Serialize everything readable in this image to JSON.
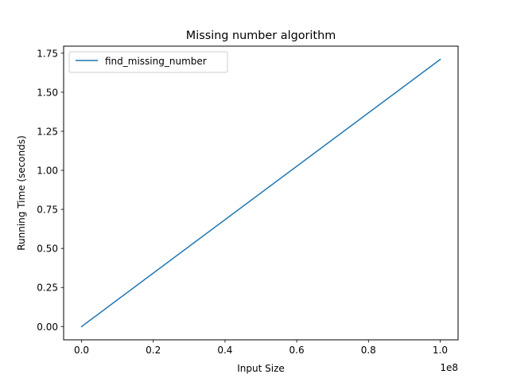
{
  "chart_data": {
    "type": "line",
    "title": "Missing number algorithm",
    "xlabel": "Input Size",
    "ylabel": "Running Time (seconds)",
    "x_offset_label": "1e8",
    "xlim": [
      -0.05,
      1.05
    ],
    "ylim": [
      -0.085,
      1.795
    ],
    "x_scale_note": "x values shown in units of 1e8",
    "xticks": [
      0.0,
      0.2,
      0.4,
      0.6,
      0.8,
      1.0
    ],
    "xtick_labels": [
      "0.0",
      "0.2",
      "0.4",
      "0.6",
      "0.8",
      "1.0"
    ],
    "yticks": [
      0.0,
      0.25,
      0.5,
      0.75,
      1.0,
      1.25,
      1.5,
      1.75
    ],
    "ytick_labels": [
      "0.00",
      "0.25",
      "0.50",
      "0.75",
      "1.00",
      "1.25",
      "1.50",
      "1.75"
    ],
    "grid": false,
    "legend_position": "top-left",
    "series": [
      {
        "name": "find_missing_number",
        "color": "#1f77b4",
        "x": [
          0.0,
          0.0001,
          0.001,
          0.01,
          1.0
        ],
        "y": [
          0.0,
          0.0,
          0.0,
          0.017,
          1.71
        ]
      }
    ]
  }
}
